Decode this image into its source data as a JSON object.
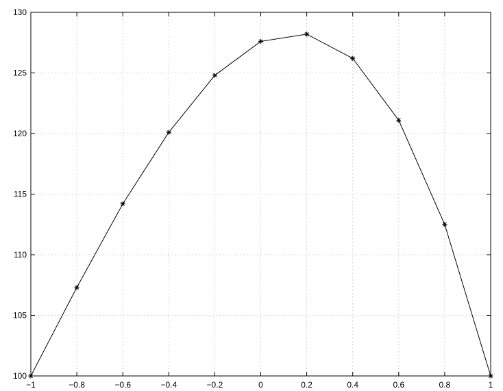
{
  "chart_data": {
    "type": "line",
    "title": "",
    "xlabel": "",
    "ylabel": "",
    "xlim": [
      -1,
      1
    ],
    "ylim": [
      100,
      130
    ],
    "x_ticks": [
      -1,
      -0.8,
      -0.6,
      -0.4,
      -0.2,
      0,
      0.2,
      0.4,
      0.6,
      0.8,
      1
    ],
    "x_tick_labels": [
      "−1",
      "−0.8",
      "−0.6",
      "−0.4",
      "−0.2",
      "0",
      "0.2",
      "0.4",
      "0.6",
      "0.8",
      "1"
    ],
    "y_ticks": [
      100,
      105,
      110,
      115,
      120,
      125,
      130
    ],
    "y_tick_labels": [
      "100",
      "105",
      "110",
      "115",
      "120",
      "125",
      "130"
    ],
    "grid": true,
    "line_color": "#000000",
    "marker": "asterisk",
    "series": [
      {
        "x": [
          -1,
          -0.8,
          -0.6,
          -0.4,
          -0.2,
          0,
          0.2,
          0.4,
          0.6,
          0.8,
          1
        ],
        "y": [
          100,
          107.3,
          114.2,
          120.1,
          124.8,
          127.6,
          128.2,
          126.2,
          121.1,
          112.5,
          100
        ]
      }
    ]
  }
}
